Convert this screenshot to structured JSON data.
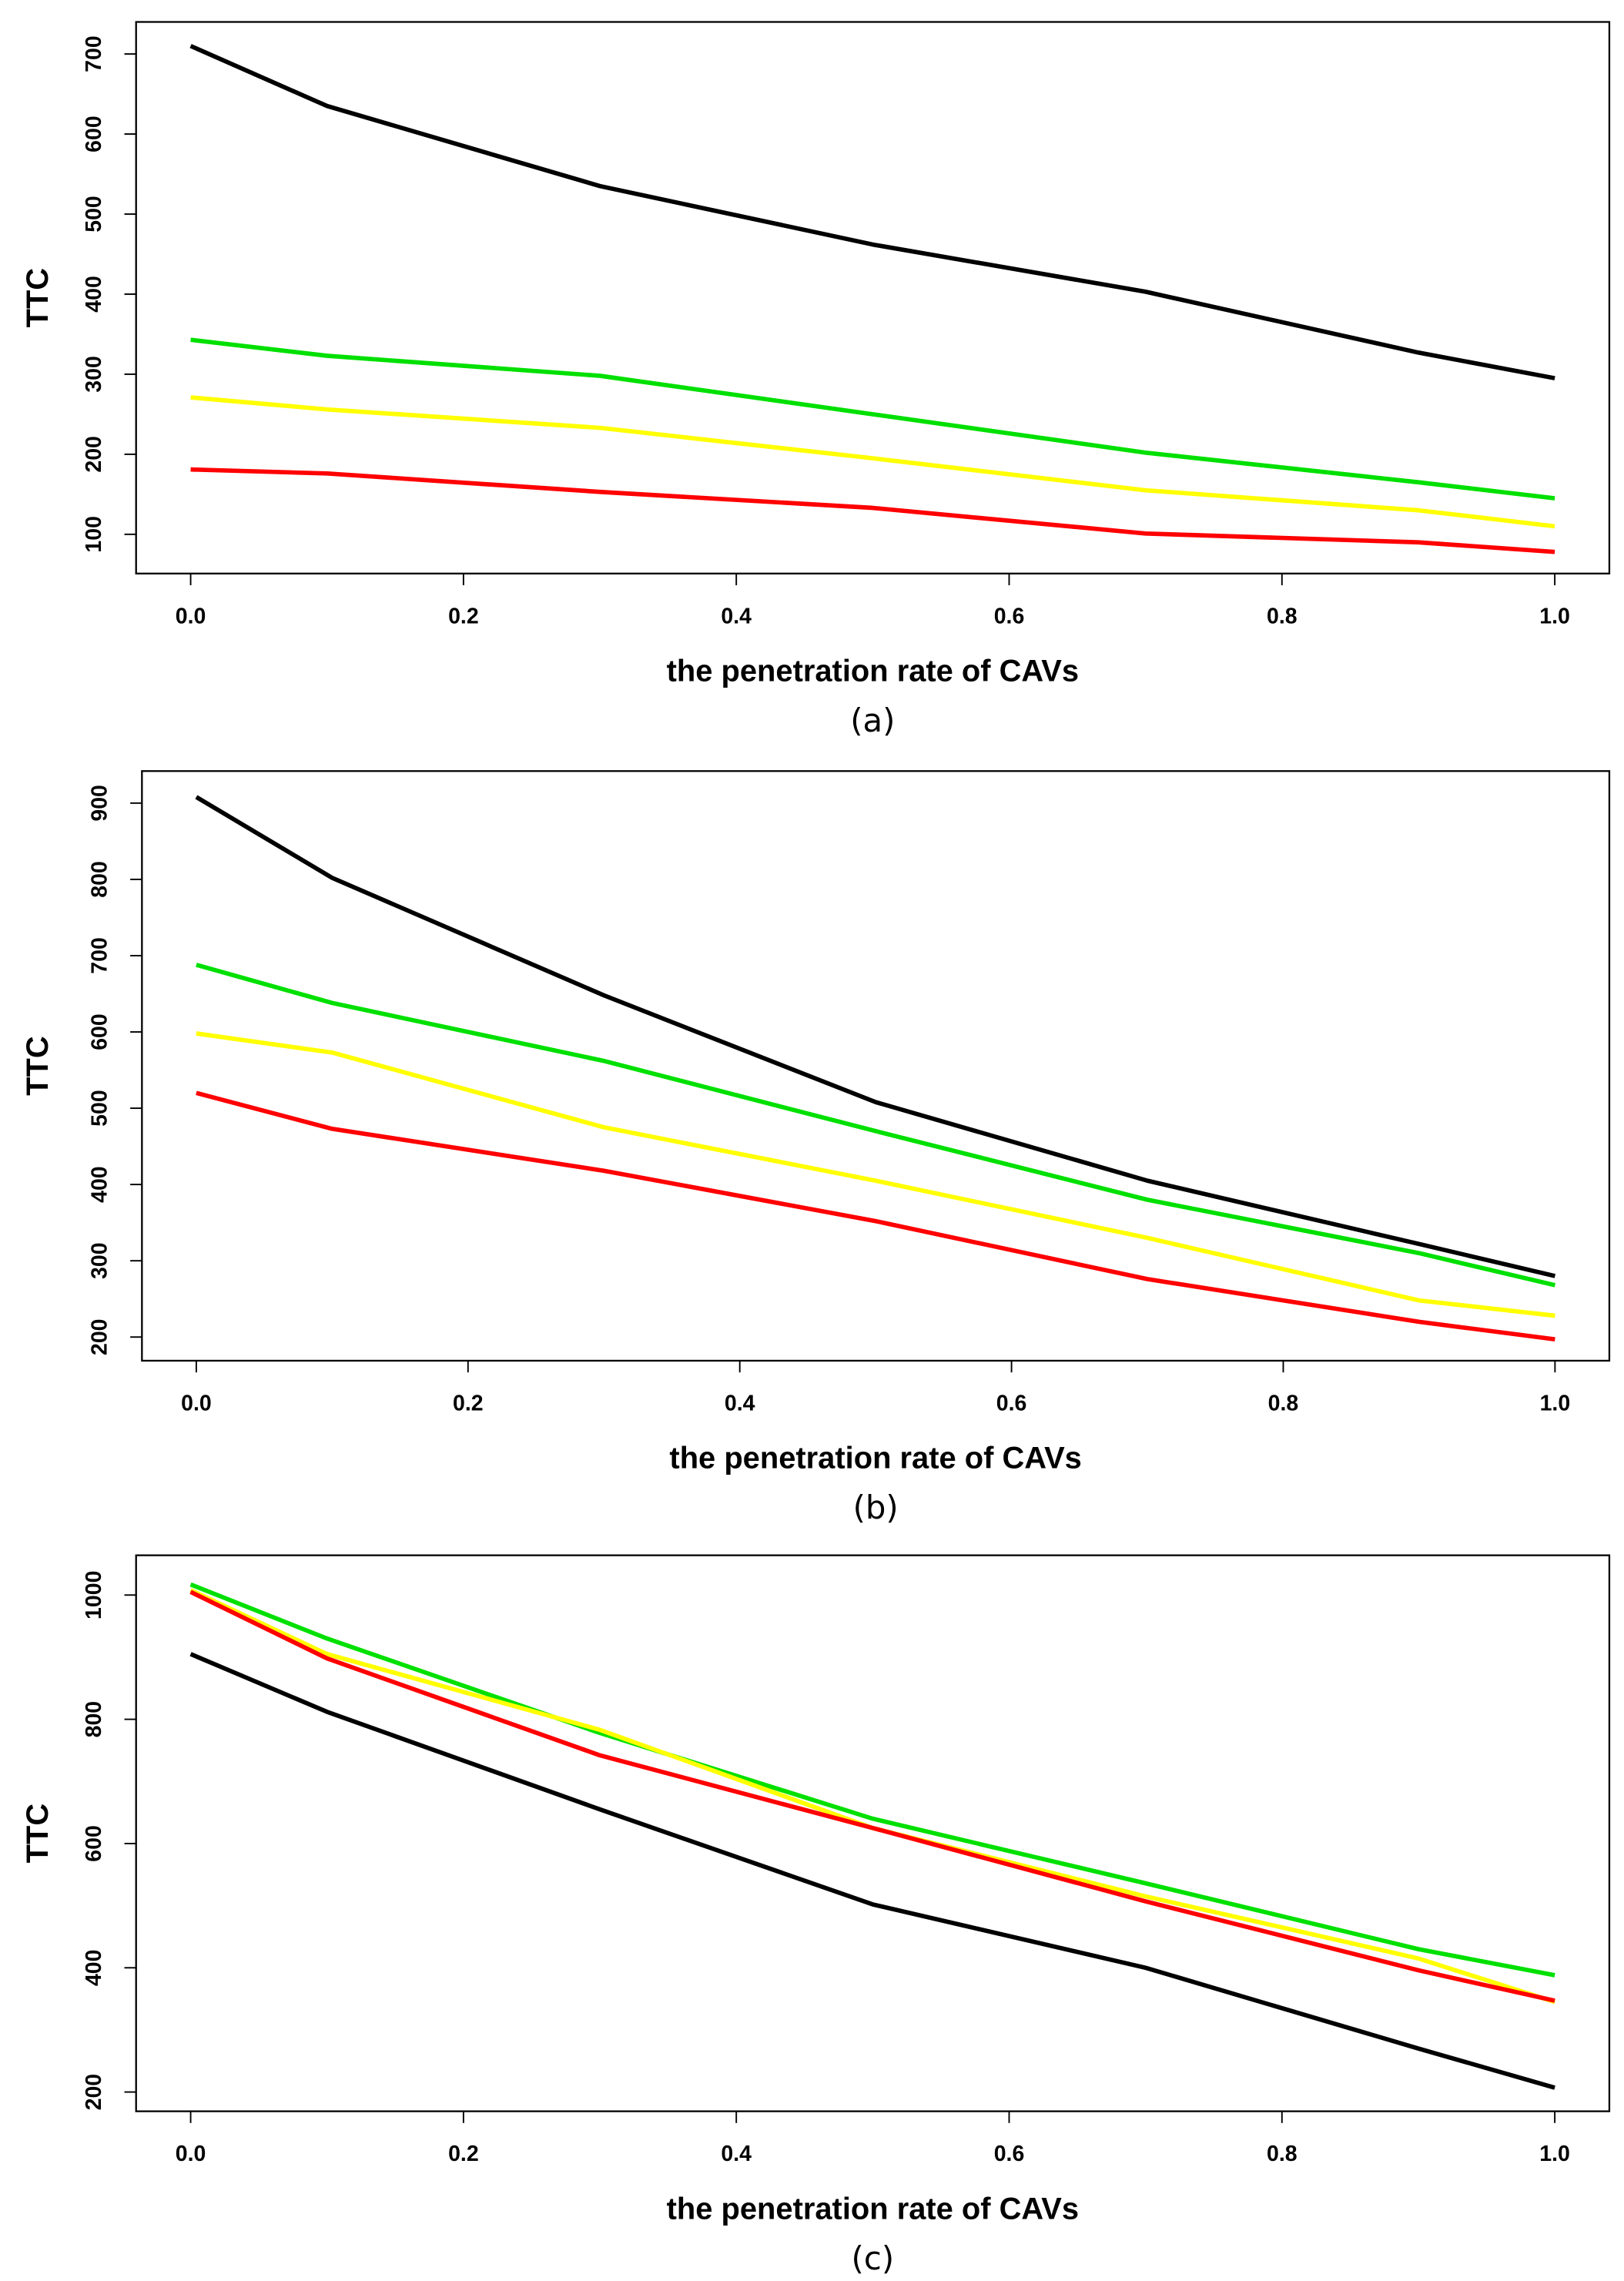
{
  "chart_data": [
    {
      "type": "line",
      "caption": "(a)",
      "y_label": "TTC",
      "x_label": "the penetration rate of CAVs",
      "x": [
        0,
        0.1,
        0.3,
        0.5,
        0.7,
        0.9,
        1
      ],
      "xlim": [
        -0.04,
        1.04
      ],
      "xticks": [
        {
          "value": 0,
          "label": "0.0"
        },
        0.2,
        0.4,
        0.6,
        0.8,
        {
          "value": 1,
          "label": "1.0"
        }
      ],
      "ylim": [
        51,
        740
      ],
      "yticks": [
        100,
        200,
        300,
        400,
        500,
        600,
        700
      ],
      "series": [
        {
          "color": "#000000",
          "values": [
            710,
            635,
            535,
            462,
            403,
            327,
            295
          ]
        },
        {
          "color": "#00e000",
          "values": [
            343,
            323,
            298,
            250,
            202,
            165,
            145
          ]
        },
        {
          "color": "#ffff00",
          "values": [
            271,
            256,
            233,
            195,
            155,
            130,
            110
          ]
        },
        {
          "color": "#ff0000",
          "values": [
            181,
            176,
            153,
            133,
            101,
            90,
            78
          ]
        }
      ]
    },
    {
      "type": "line",
      "caption": "(b)",
      "y_label": "TTC",
      "x_label": "the penetration rate of CAVs",
      "x": [
        0,
        0.1,
        0.3,
        0.5,
        0.7,
        0.9,
        1
      ],
      "xlim": [
        -0.04,
        1.04
      ],
      "xticks": [
        {
          "value": 0,
          "label": "0.0"
        },
        0.2,
        0.4,
        0.6,
        0.8,
        {
          "value": 1,
          "label": "1.0"
        }
      ],
      "ylim": [
        169,
        942
      ],
      "yticks": [
        200,
        300,
        400,
        500,
        600,
        700,
        800,
        900
      ],
      "series": [
        {
          "color": "#000000",
          "values": [
            908,
            802,
            648,
            508,
            405,
            322,
            280
          ]
        },
        {
          "color": "#00e000",
          "values": [
            688,
            638,
            562,
            470,
            380,
            310,
            268
          ]
        },
        {
          "color": "#ffff00",
          "values": [
            598,
            573,
            475,
            405,
            330,
            248,
            228
          ]
        },
        {
          "color": "#ff0000",
          "values": [
            520,
            473,
            418,
            352,
            276,
            220,
            197
          ]
        }
      ]
    },
    {
      "type": "line",
      "caption": "(c)",
      "y_label": "TTC",
      "x_label": "the penetration rate of CAVs",
      "x": [
        0,
        0.1,
        0.3,
        0.5,
        0.7,
        0.9,
        1
      ],
      "xlim": [
        -0.04,
        1.04
      ],
      "xticks": [
        {
          "value": 0,
          "label": "0.0"
        },
        0.2,
        0.4,
        0.6,
        0.8,
        {
          "value": 1,
          "label": "1.0"
        }
      ],
      "ylim": [
        169,
        1064
      ],
      "yticks": [
        200,
        400,
        600,
        800,
        1000
      ],
      "series": [
        {
          "color": "#000000",
          "values": [
            905,
            812,
            655,
            502,
            400,
            270,
            207
          ]
        },
        {
          "color": "#00e000",
          "values": [
            1017,
            930,
            778,
            640,
            536,
            430,
            388
          ]
        },
        {
          "color": "#ffff00",
          "values": [
            1008,
            905,
            783,
            625,
            515,
            415,
            345
          ]
        },
        {
          "color": "#ff0000",
          "values": [
            1005,
            898,
            742,
            625,
            507,
            396,
            347
          ]
        }
      ]
    }
  ]
}
